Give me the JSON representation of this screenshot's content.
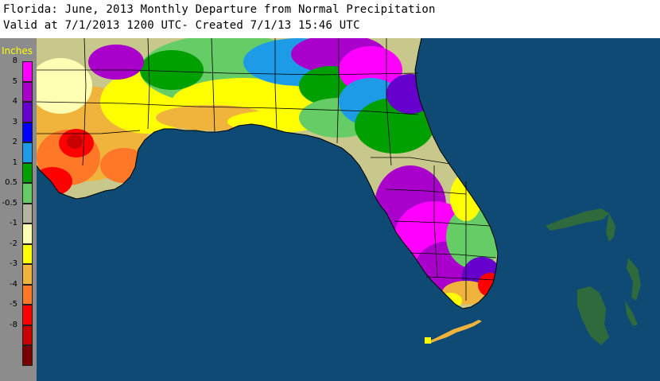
{
  "header": {
    "title": "Florida: June, 2013 Monthly Departure from Normal Precipitation",
    "subtitle": "Valid at 7/1/2013 1200 UTC- Created 7/1/13 15:46 UTC"
  },
  "legend": {
    "title": "Inches",
    "items": [
      {
        "label": "8",
        "color": "#ff00ff"
      },
      {
        "label": "5",
        "color": "#aa00cc"
      },
      {
        "label": "4",
        "color": "#6600cc"
      },
      {
        "label": "3",
        "color": "#0000ff"
      },
      {
        "label": "2",
        "color": "#1e9be6"
      },
      {
        "label": "1",
        "color": "#00a000"
      },
      {
        "label": "0.5",
        "color": "#66cc66"
      },
      {
        "label": "-0.5",
        "color": "#b4b4a0"
      },
      {
        "label": "-1",
        "color": "#ffffb4"
      },
      {
        "label": "-2",
        "color": "#ffff00"
      },
      {
        "label": "-3",
        "color": "#f0b43c"
      },
      {
        "label": "-4",
        "color": "#ff7828"
      },
      {
        "label": "-5",
        "color": "#ff0000"
      },
      {
        "label": "-8",
        "color": "#c80000"
      },
      {
        "label": "",
        "color": "#780000"
      }
    ]
  },
  "map": {
    "water_color": "#0e4a74",
    "land_base_color": "#c8c88c",
    "border_color": "#000000",
    "bahamas_color": "#2e6a3c"
  }
}
